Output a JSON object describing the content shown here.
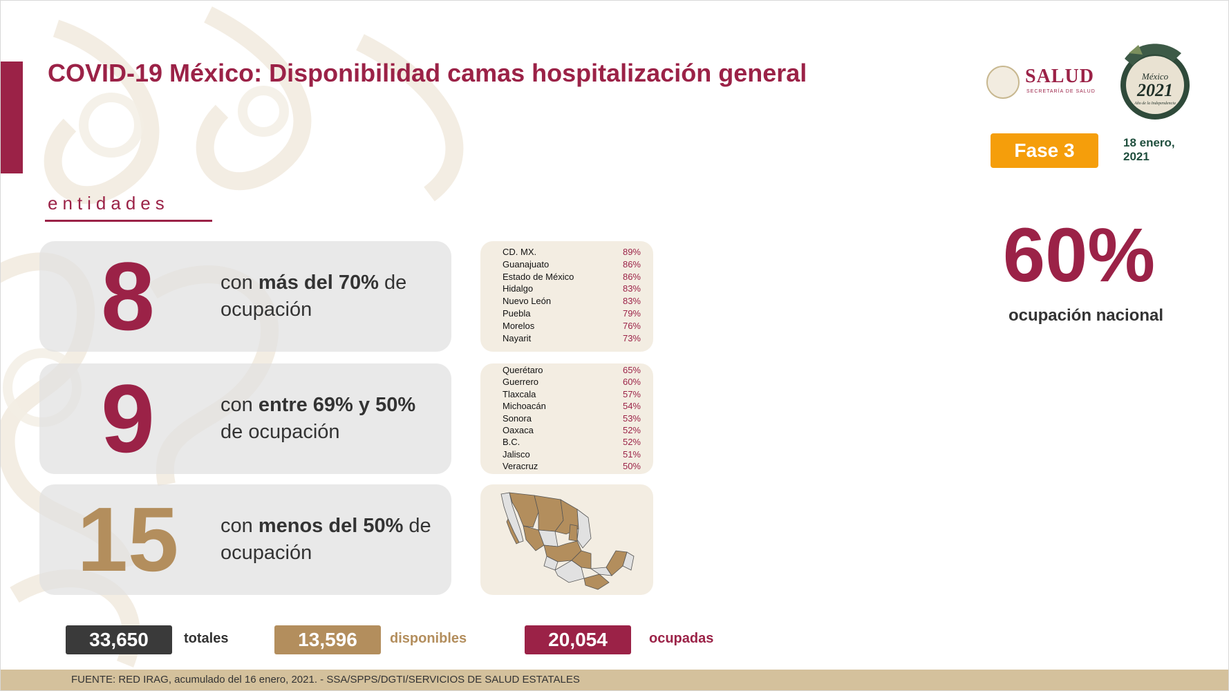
{
  "title": "COVID-19 México: Disponibilidad camas hospitalización general",
  "logos": {
    "salud": "SALUD",
    "salud_sub": "SECRETARÍA DE SALUD",
    "mexico_2021_line1": "México",
    "mexico_2021_line2": "2021",
    "mexico_2021_line3": "Año de la Independencia"
  },
  "phase": "Fase 3",
  "date": "18 enero, 2021",
  "national": {
    "percent": "60%",
    "label": "ocupación nacional"
  },
  "section_label": "entidades",
  "categories": [
    {
      "count": "8",
      "text_pre": "con ",
      "text_bold": "más del 70%",
      "text_post": " de ocupación",
      "color": "#9b2247"
    },
    {
      "count": "9",
      "text_pre": "con ",
      "text_bold": "entre 69% y 50%",
      "text_post": " de ocupación",
      "color": "#9b2247"
    },
    {
      "count": "15",
      "text_pre": "con ",
      "text_bold": "menos del 50%",
      "text_post": " de ocupación",
      "color": "#b38e5d"
    }
  ],
  "high_occupancy": [
    {
      "state": "CD. MX.",
      "pct": "89%"
    },
    {
      "state": "Guanajuato",
      "pct": "86%"
    },
    {
      "state": "Estado de México",
      "pct": "86%"
    },
    {
      "state": "Hidalgo",
      "pct": "83%"
    },
    {
      "state": "Nuevo León",
      "pct": "83%"
    },
    {
      "state": "Puebla",
      "pct": "79%"
    },
    {
      "state": "Morelos",
      "pct": "76%"
    },
    {
      "state": "Nayarit",
      "pct": "73%"
    }
  ],
  "mid_occupancy": [
    {
      "state": "Querétaro",
      "pct": "65%"
    },
    {
      "state": "Guerrero",
      "pct": "60%"
    },
    {
      "state": "Tlaxcala",
      "pct": "57%"
    },
    {
      "state": "Michoacán",
      "pct": "54%"
    },
    {
      "state": "Sonora",
      "pct": "53%"
    },
    {
      "state": "Oaxaca",
      "pct": "52%"
    },
    {
      "state": "B.C.",
      "pct": "52%"
    },
    {
      "state": "Jalisco",
      "pct": "51%"
    },
    {
      "state": "Veracruz",
      "pct": "50%"
    }
  ],
  "totals": {
    "total_value": "33,650",
    "total_label": "totales",
    "available_value": "13,596",
    "available_label": "disponibles",
    "occupied_value": "20,054",
    "occupied_label": "ocupadas"
  },
  "colors": {
    "primary": "#9b2247",
    "gold": "#b38e5d",
    "dark": "#3a3a3a",
    "phase": "#f59e0b",
    "footer": "#d4c19c"
  },
  "footer": "FUENTE: RED IRAG, acumulado del 16 enero, 2021. -  SSA/SPPS/DGTI/SERVICIOS DE SALUD ESTATALES"
}
